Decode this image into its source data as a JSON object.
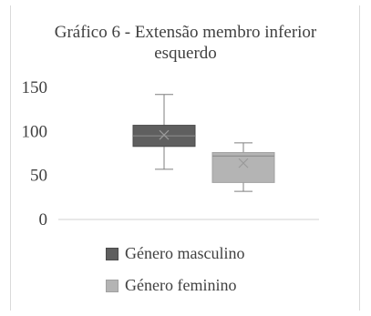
{
  "chart_data": {
    "type": "boxplot",
    "title_lines": [
      "Gráfico 6 - Extensão membro inferior",
      "esquerdo"
    ],
    "ylim": [
      0,
      150
    ],
    "yticks": [
      0,
      50,
      100,
      150
    ],
    "grid": false,
    "legend_position": "bottom",
    "series": [
      {
        "name": "Género masculino",
        "color": "#5f5f5f",
        "min": 57,
        "q1": 83,
        "median": 95,
        "q3": 107,
        "max": 142,
        "mean": 96
      },
      {
        "name": "Género feminino",
        "color": "#b4b4b4",
        "min": 32,
        "q1": 42,
        "median": 72,
        "q3": 76,
        "max": 87,
        "mean": 64
      }
    ]
  }
}
